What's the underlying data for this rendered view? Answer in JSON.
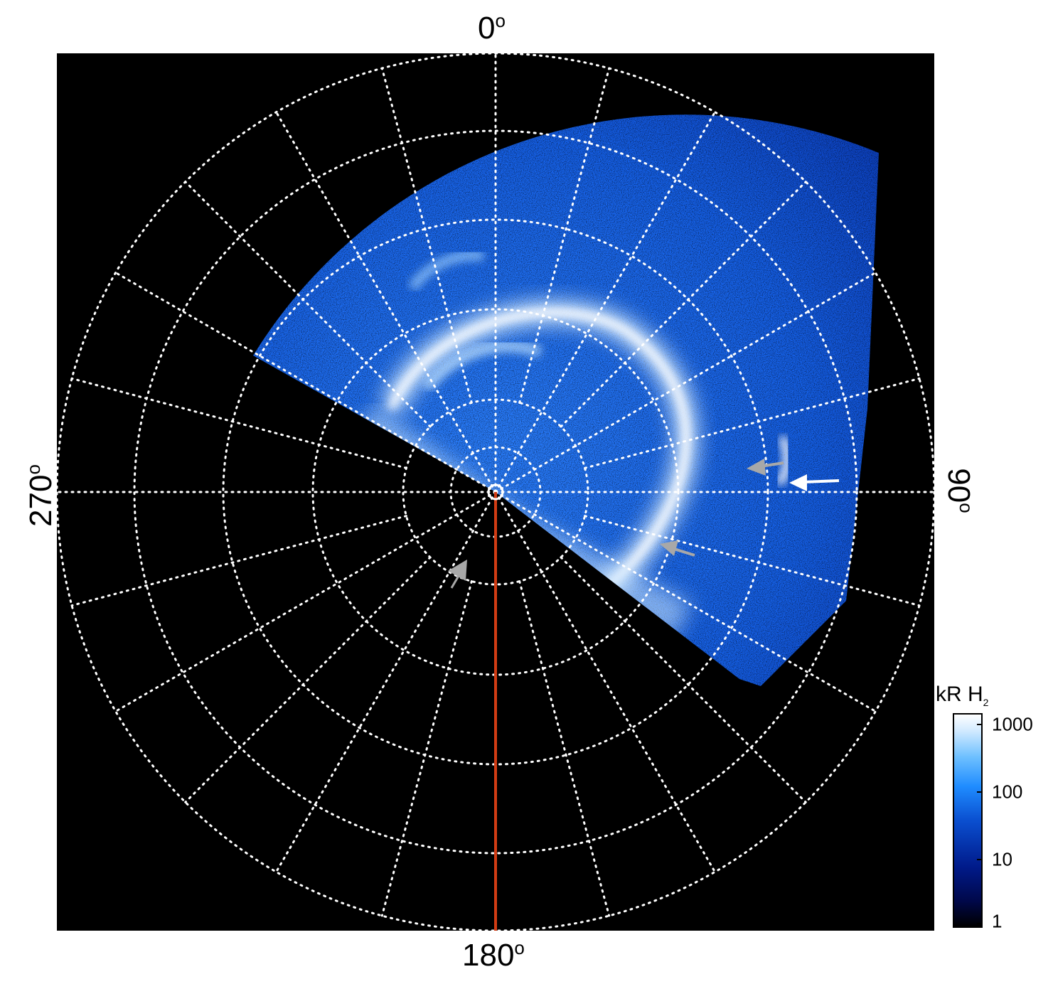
{
  "axis_labels": {
    "top": "0",
    "bottom": "180",
    "left": "270",
    "right": "90",
    "degree_symbol": "o"
  },
  "colorbar": {
    "title_main": "kR H",
    "title_sub": "2",
    "ticks": [
      "1000",
      "100",
      "10",
      "1"
    ],
    "scale": "log",
    "range": [
      1,
      1000
    ],
    "colors": [
      "#000000",
      "#001a8a",
      "#0a4fd0",
      "#1f8cff",
      "#6ec0ff",
      "#ffffff"
    ]
  },
  "colors": {
    "background": "#000000",
    "grid": "#ffffff",
    "meridian_line": "#d23c14",
    "arrow_white": "#ffffff",
    "arrow_gray": "#a8a8a8"
  }
}
